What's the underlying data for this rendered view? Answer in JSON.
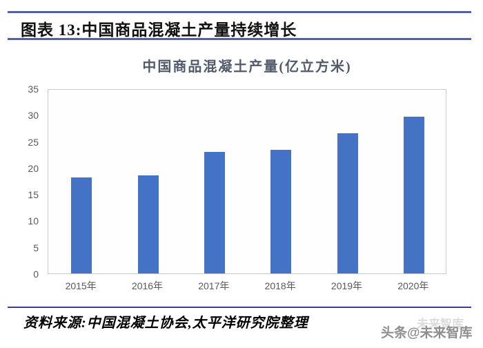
{
  "header": {
    "title": "图表 13:中国商品混凝土产量持续增长"
  },
  "chart_data": {
    "type": "bar",
    "title": "中国商品混凝土产量(亿立方米)",
    "categories": [
      "2015年",
      "2016年",
      "2017年",
      "2018年",
      "2019年",
      "2020年"
    ],
    "values": [
      18.2,
      18.5,
      23.0,
      23.4,
      26.5,
      29.6
    ],
    "xlabel": "",
    "ylabel": "",
    "ylim": [
      0,
      35
    ],
    "yticks": [
      0,
      5,
      10,
      15,
      20,
      25,
      30,
      35
    ],
    "grid": false,
    "legend": false,
    "bar_color": "#4472c4",
    "axis_label_color": "#595959",
    "title_color": "#4f5a6a"
  },
  "footer": {
    "source": "资料来源:中国混凝土协会,太平洋研究院整理",
    "watermark_main": "头条@未来智库",
    "watermark_ghost": "未来智库"
  },
  "colors": {
    "header_rule": "#565fa6",
    "footer_rule": "#38418f",
    "plot_border": "#c9c9c9"
  }
}
